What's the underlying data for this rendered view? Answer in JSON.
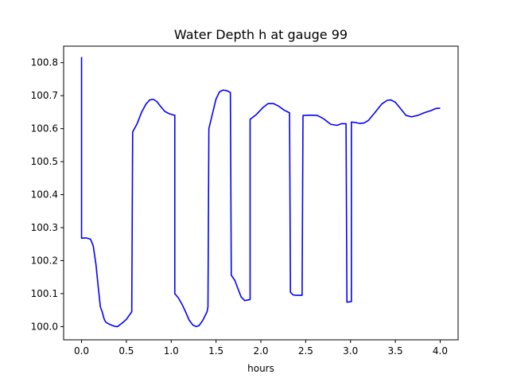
{
  "chart_data": {
    "type": "line",
    "title": "Water Depth h at gauge 99",
    "xlabel": "hours",
    "ylabel": "",
    "xlim": [
      -0.2,
      4.2
    ],
    "ylim": [
      99.96,
      100.85
    ],
    "xticks": [
      0.0,
      0.5,
      1.0,
      1.5,
      2.0,
      2.5,
      3.0,
      3.5,
      4.0
    ],
    "xtick_labels": [
      "0.0",
      "0.5",
      "1.0",
      "1.5",
      "2.0",
      "2.5",
      "3.0",
      "3.5",
      "4.0"
    ],
    "yticks": [
      100.0,
      100.1,
      100.2,
      100.3,
      100.4,
      100.5,
      100.6,
      100.7,
      100.8
    ],
    "ytick_labels": [
      "100.0",
      "100.1",
      "100.2",
      "100.3",
      "100.4",
      "100.5",
      "100.6",
      "100.7",
      "100.8"
    ],
    "grid": false,
    "series": [
      {
        "color": "#0000ff",
        "x": [
          0.0,
          0.0,
          0.05,
          0.1,
          0.13,
          0.16,
          0.19,
          0.21,
          0.23,
          0.25,
          0.26,
          0.27,
          0.29,
          0.33,
          0.37,
          0.4,
          0.45,
          0.5,
          0.56,
          0.57,
          0.57,
          0.62,
          0.67,
          0.72,
          0.76,
          0.8,
          0.84,
          0.88,
          0.93,
          0.98,
          1.03,
          1.04,
          1.04,
          1.08,
          1.12,
          1.16,
          1.2,
          1.24,
          1.28,
          1.31,
          1.35,
          1.4,
          1.41,
          1.42,
          1.42,
          1.46,
          1.5,
          1.54,
          1.58,
          1.62,
          1.66,
          1.67,
          1.67,
          1.69,
          1.71,
          1.74,
          1.78,
          1.82,
          1.86,
          1.88,
          1.88,
          1.88,
          1.95,
          2.02,
          2.08,
          2.14,
          2.2,
          2.26,
          2.32,
          2.33,
          2.33,
          2.36,
          2.4,
          2.46,
          2.47,
          2.47,
          2.55,
          2.63,
          2.7,
          2.78,
          2.85,
          2.9,
          2.95,
          2.96,
          2.96,
          3.01,
          3.01,
          3.05,
          3.1,
          3.15,
          3.2,
          3.27,
          3.35,
          3.41,
          3.45,
          3.5,
          3.56,
          3.62,
          3.68,
          3.75,
          3.82,
          3.9,
          3.95,
          4.0
        ],
        "y": [
          100.817,
          100.268,
          100.269,
          100.265,
          100.245,
          100.19,
          100.11,
          100.06,
          100.045,
          100.025,
          100.018,
          100.014,
          100.01,
          100.005,
          100.001,
          100.0,
          100.01,
          100.022,
          100.045,
          100.59,
          100.59,
          100.615,
          100.65,
          100.675,
          100.687,
          100.689,
          100.682,
          100.668,
          100.652,
          100.645,
          100.641,
          100.641,
          100.1,
          100.087,
          100.068,
          100.045,
          100.02,
          100.005,
          100.0,
          100.003,
          100.018,
          100.045,
          100.06,
          100.6,
          100.6,
          100.645,
          100.69,
          100.712,
          100.717,
          100.715,
          100.71,
          100.156,
          100.156,
          100.148,
          100.14,
          100.118,
          100.09,
          100.079,
          100.081,
          100.082,
          100.628,
          100.628,
          100.643,
          100.663,
          100.676,
          100.676,
          100.668,
          100.656,
          100.648,
          100.104,
          100.104,
          100.096,
          100.095,
          100.095,
          100.64,
          100.64,
          100.641,
          100.64,
          100.63,
          100.613,
          100.61,
          100.615,
          100.615,
          100.074,
          100.074,
          100.076,
          100.62,
          100.619,
          100.616,
          100.617,
          100.625,
          100.648,
          100.675,
          100.686,
          100.687,
          100.68,
          100.66,
          100.64,
          100.636,
          100.64,
          100.648,
          100.655,
          100.661,
          100.662
        ]
      }
    ]
  }
}
